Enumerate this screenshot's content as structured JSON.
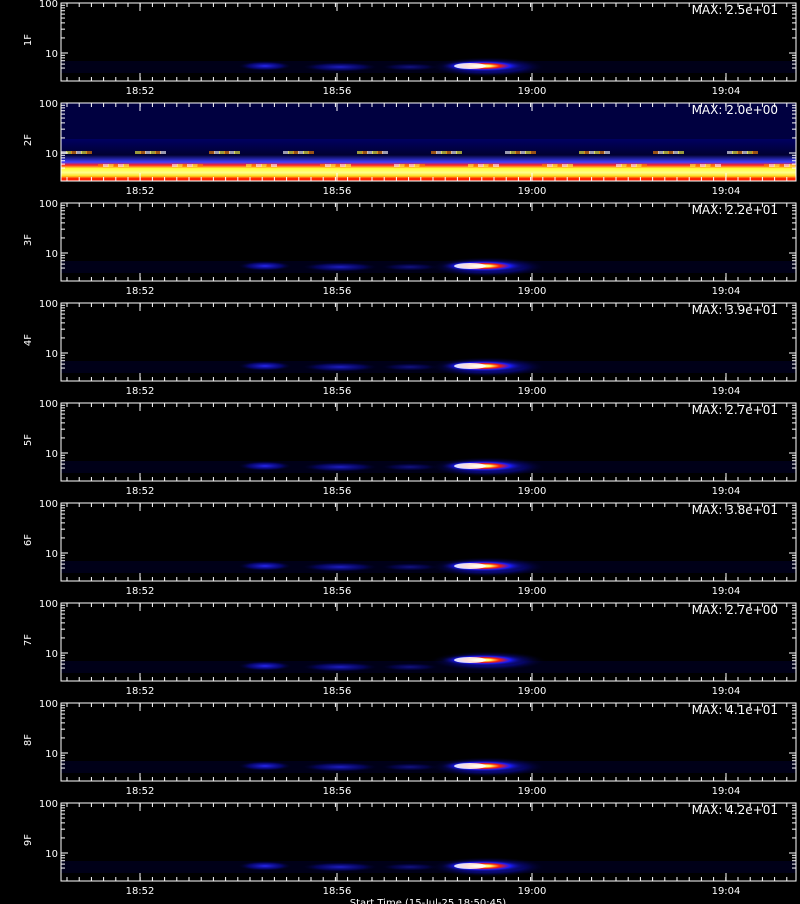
{
  "chart_data": {
    "type": "heatmap",
    "colormap": [
      "#000000",
      "#0000ff",
      "#ff0000",
      "#ffff00",
      "#ffffff"
    ],
    "x_ticks": [
      "18:52",
      "18:56",
      "19:00",
      "19:04"
    ],
    "y_ticks": [
      "100",
      "10"
    ],
    "y_scale": "log",
    "xlabel": "Start Time (15-Jul-25 18:50:45)",
    "panels": [
      {
        "label": "1F",
        "max_label": "MAX: 2.5e+01"
      },
      {
        "label": "2F",
        "max_label": "MAX: 2.0e+00"
      },
      {
        "label": "3F",
        "max_label": "MAX: 2.2e+01"
      },
      {
        "label": "4F",
        "max_label": "MAX: 3.9e+01"
      },
      {
        "label": "5F",
        "max_label": "MAX: 2.7e+01"
      },
      {
        "label": "6F",
        "max_label": "MAX: 3.8e+01"
      },
      {
        "label": "7F",
        "max_label": "MAX: 2.7e+00"
      },
      {
        "label": "8F",
        "max_label": "MAX: 4.1e+01"
      },
      {
        "label": "9F",
        "max_label": "MAX: 4.2e+01"
      }
    ]
  }
}
